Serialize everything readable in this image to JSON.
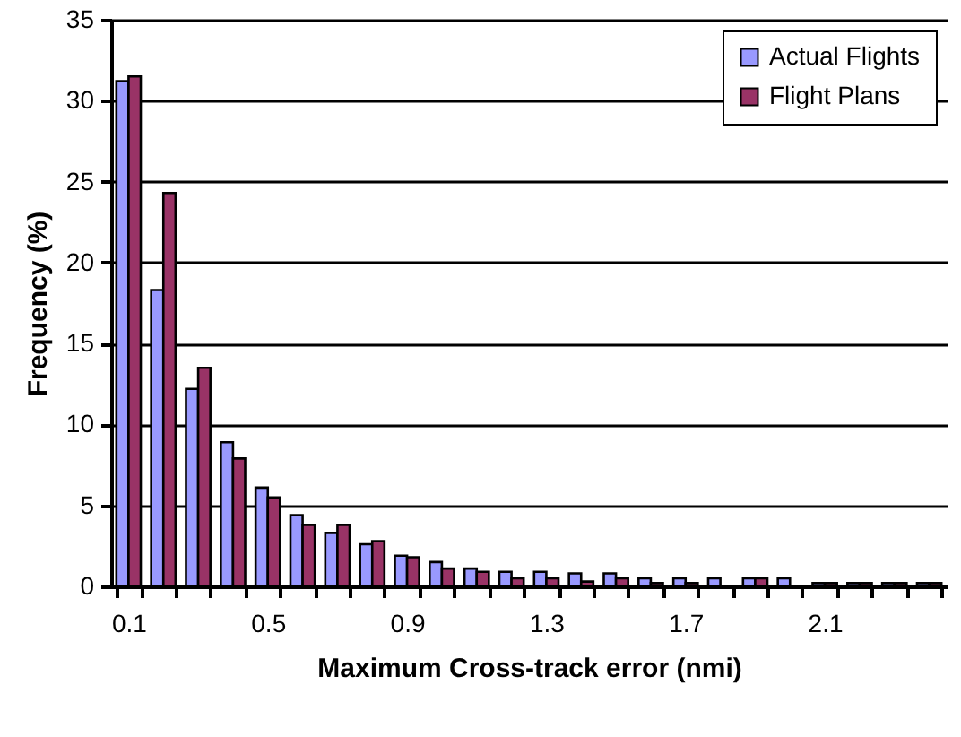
{
  "chart_data": {
    "type": "bar",
    "xlabel": "Maximum Cross-track error (nmi)",
    "ylabel": "Frequency (%)",
    "categories": [
      "0.1",
      null,
      null,
      null,
      "0.5",
      null,
      null,
      null,
      "0.9",
      null,
      null,
      null,
      "1.3",
      null,
      null,
      null,
      "1.7",
      null,
      null,
      null,
      "2.1",
      null,
      null,
      null
    ],
    "series": [
      {
        "name": "Actual Flights",
        "color": "#9999ff",
        "values": [
          31.2,
          18.3,
          12.2,
          8.9,
          6.1,
          4.4,
          3.3,
          2.6,
          1.9,
          1.5,
          1.1,
          0.9,
          0.9,
          0.8,
          0.8,
          0.5,
          0.5,
          0.5,
          0.5,
          0.5,
          0.2,
          0.2,
          0.2,
          0.2
        ]
      },
      {
        "name": "Flight Plans",
        "color": "#993366",
        "values": [
          31.5,
          24.3,
          13.5,
          7.9,
          5.5,
          3.8,
          3.8,
          2.8,
          1.8,
          1.1,
          0.9,
          0.5,
          0.5,
          0.3,
          0.5,
          0.2,
          0.2,
          null,
          0.5,
          null,
          0.2,
          0.2,
          0.2,
          0.2
        ]
      }
    ],
    "ylim": [
      0,
      35
    ],
    "yticks": [
      0,
      5,
      10,
      15,
      20,
      25,
      30,
      35
    ],
    "grid": "y",
    "legend": "top right"
  }
}
